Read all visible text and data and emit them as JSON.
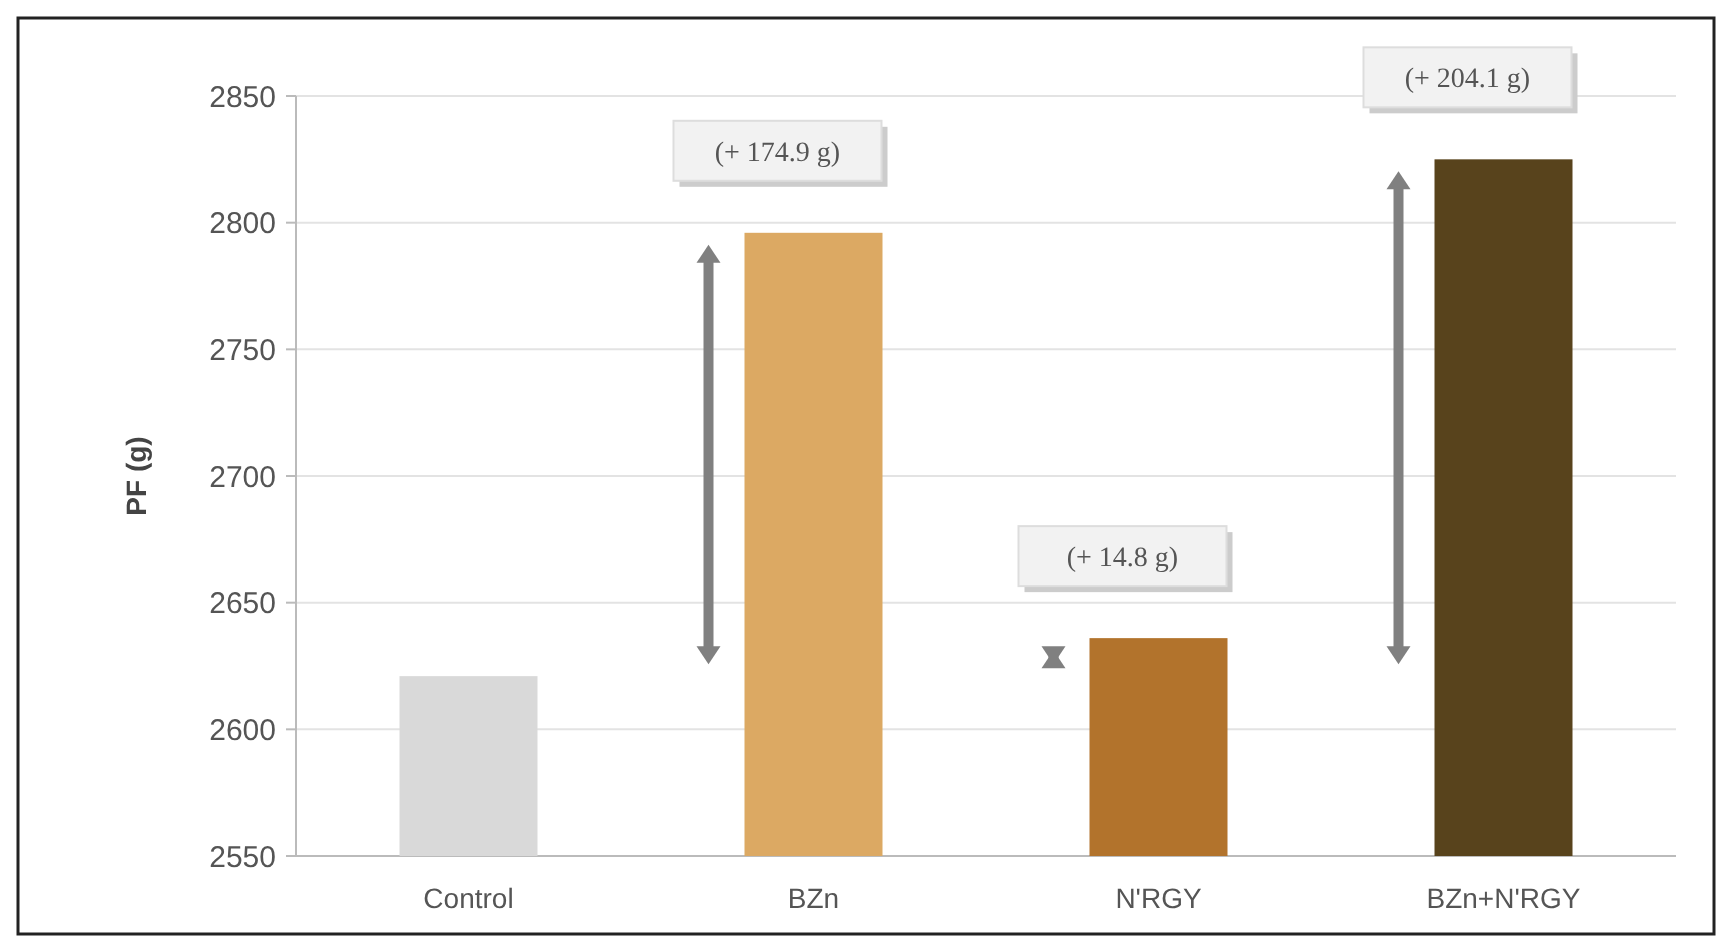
{
  "chart_data": {
    "type": "bar",
    "ylabel": "PF (g)",
    "categories": [
      "Control",
      "BZn",
      "N'RGY",
      "BZn+N'RGY"
    ],
    "values": [
      2621,
      2796,
      2636,
      2825
    ],
    "colors": [
      "#d9d9d9",
      "#dca963",
      "#b2732c",
      "#58431c"
    ],
    "ylim": [
      2550,
      2850
    ],
    "yticks": [
      2550,
      2600,
      2650,
      2700,
      2750,
      2800,
      2850
    ],
    "grid": "y",
    "annotations": [
      {
        "text": "(+ 174.9 g)",
        "x": "BZn",
        "y": 2796
      },
      {
        "text": "(+ 14.8 g)",
        "x": "N'RGY",
        "y": 2636
      },
      {
        "text": "(+ 204.1 g)",
        "x": "BZn+N'RGY",
        "y": 2825
      }
    ]
  }
}
